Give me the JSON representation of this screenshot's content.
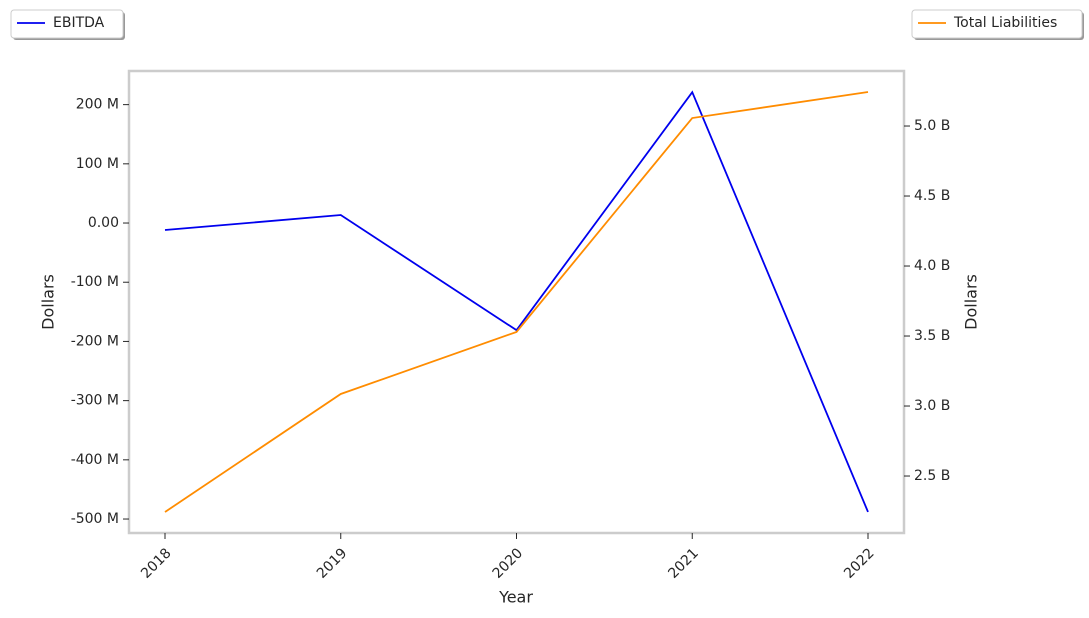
{
  "chart_data": {
    "type": "line",
    "categories": [
      "2018",
      "2019",
      "2020",
      "2021",
      "2022"
    ],
    "x_label": "Year",
    "y_label": "Dollars",
    "y2_label": "Dollars",
    "series": [
      {
        "name": "EBITDA",
        "color": "#0000ee",
        "values": [
          -11800000,
          13500000,
          -181000000,
          221000000,
          -488000000
        ]
      },
      {
        "name": "Total Liabilities",
        "color": "#ff8c00",
        "axis": "y2",
        "values": [
          2243000000,
          3086000000,
          3529000000,
          5057000000,
          5243000000
        ]
      }
    ],
    "ylim": [
      -523600000,
      256800000
    ],
    "yticks": [
      {
        "value": -500000000,
        "label": "-500 M"
      },
      {
        "value": -400000000,
        "label": "-400 M"
      },
      {
        "value": -300000000,
        "label": "-300 M"
      },
      {
        "value": -200000000,
        "label": "-200 M"
      },
      {
        "value": -100000000,
        "label": "-100 M"
      },
      {
        "value": 0,
        "label": "0.00"
      },
      {
        "value": 100000000,
        "label": "100 M"
      },
      {
        "value": 200000000,
        "label": "200 M"
      }
    ],
    "y2lim": [
      2093000000,
      5393000000
    ],
    "y2ticks": [
      {
        "value": 2500000000,
        "label": "2.5 B"
      },
      {
        "value": 3000000000,
        "label": "3.0 B"
      },
      {
        "value": 3500000000,
        "label": "3.5 B"
      },
      {
        "value": 4000000000,
        "label": "4.0 B"
      },
      {
        "value": 4500000000,
        "label": "4.5 B"
      },
      {
        "value": 5000000000,
        "label": "5.0 B"
      }
    ],
    "grid": false
  }
}
